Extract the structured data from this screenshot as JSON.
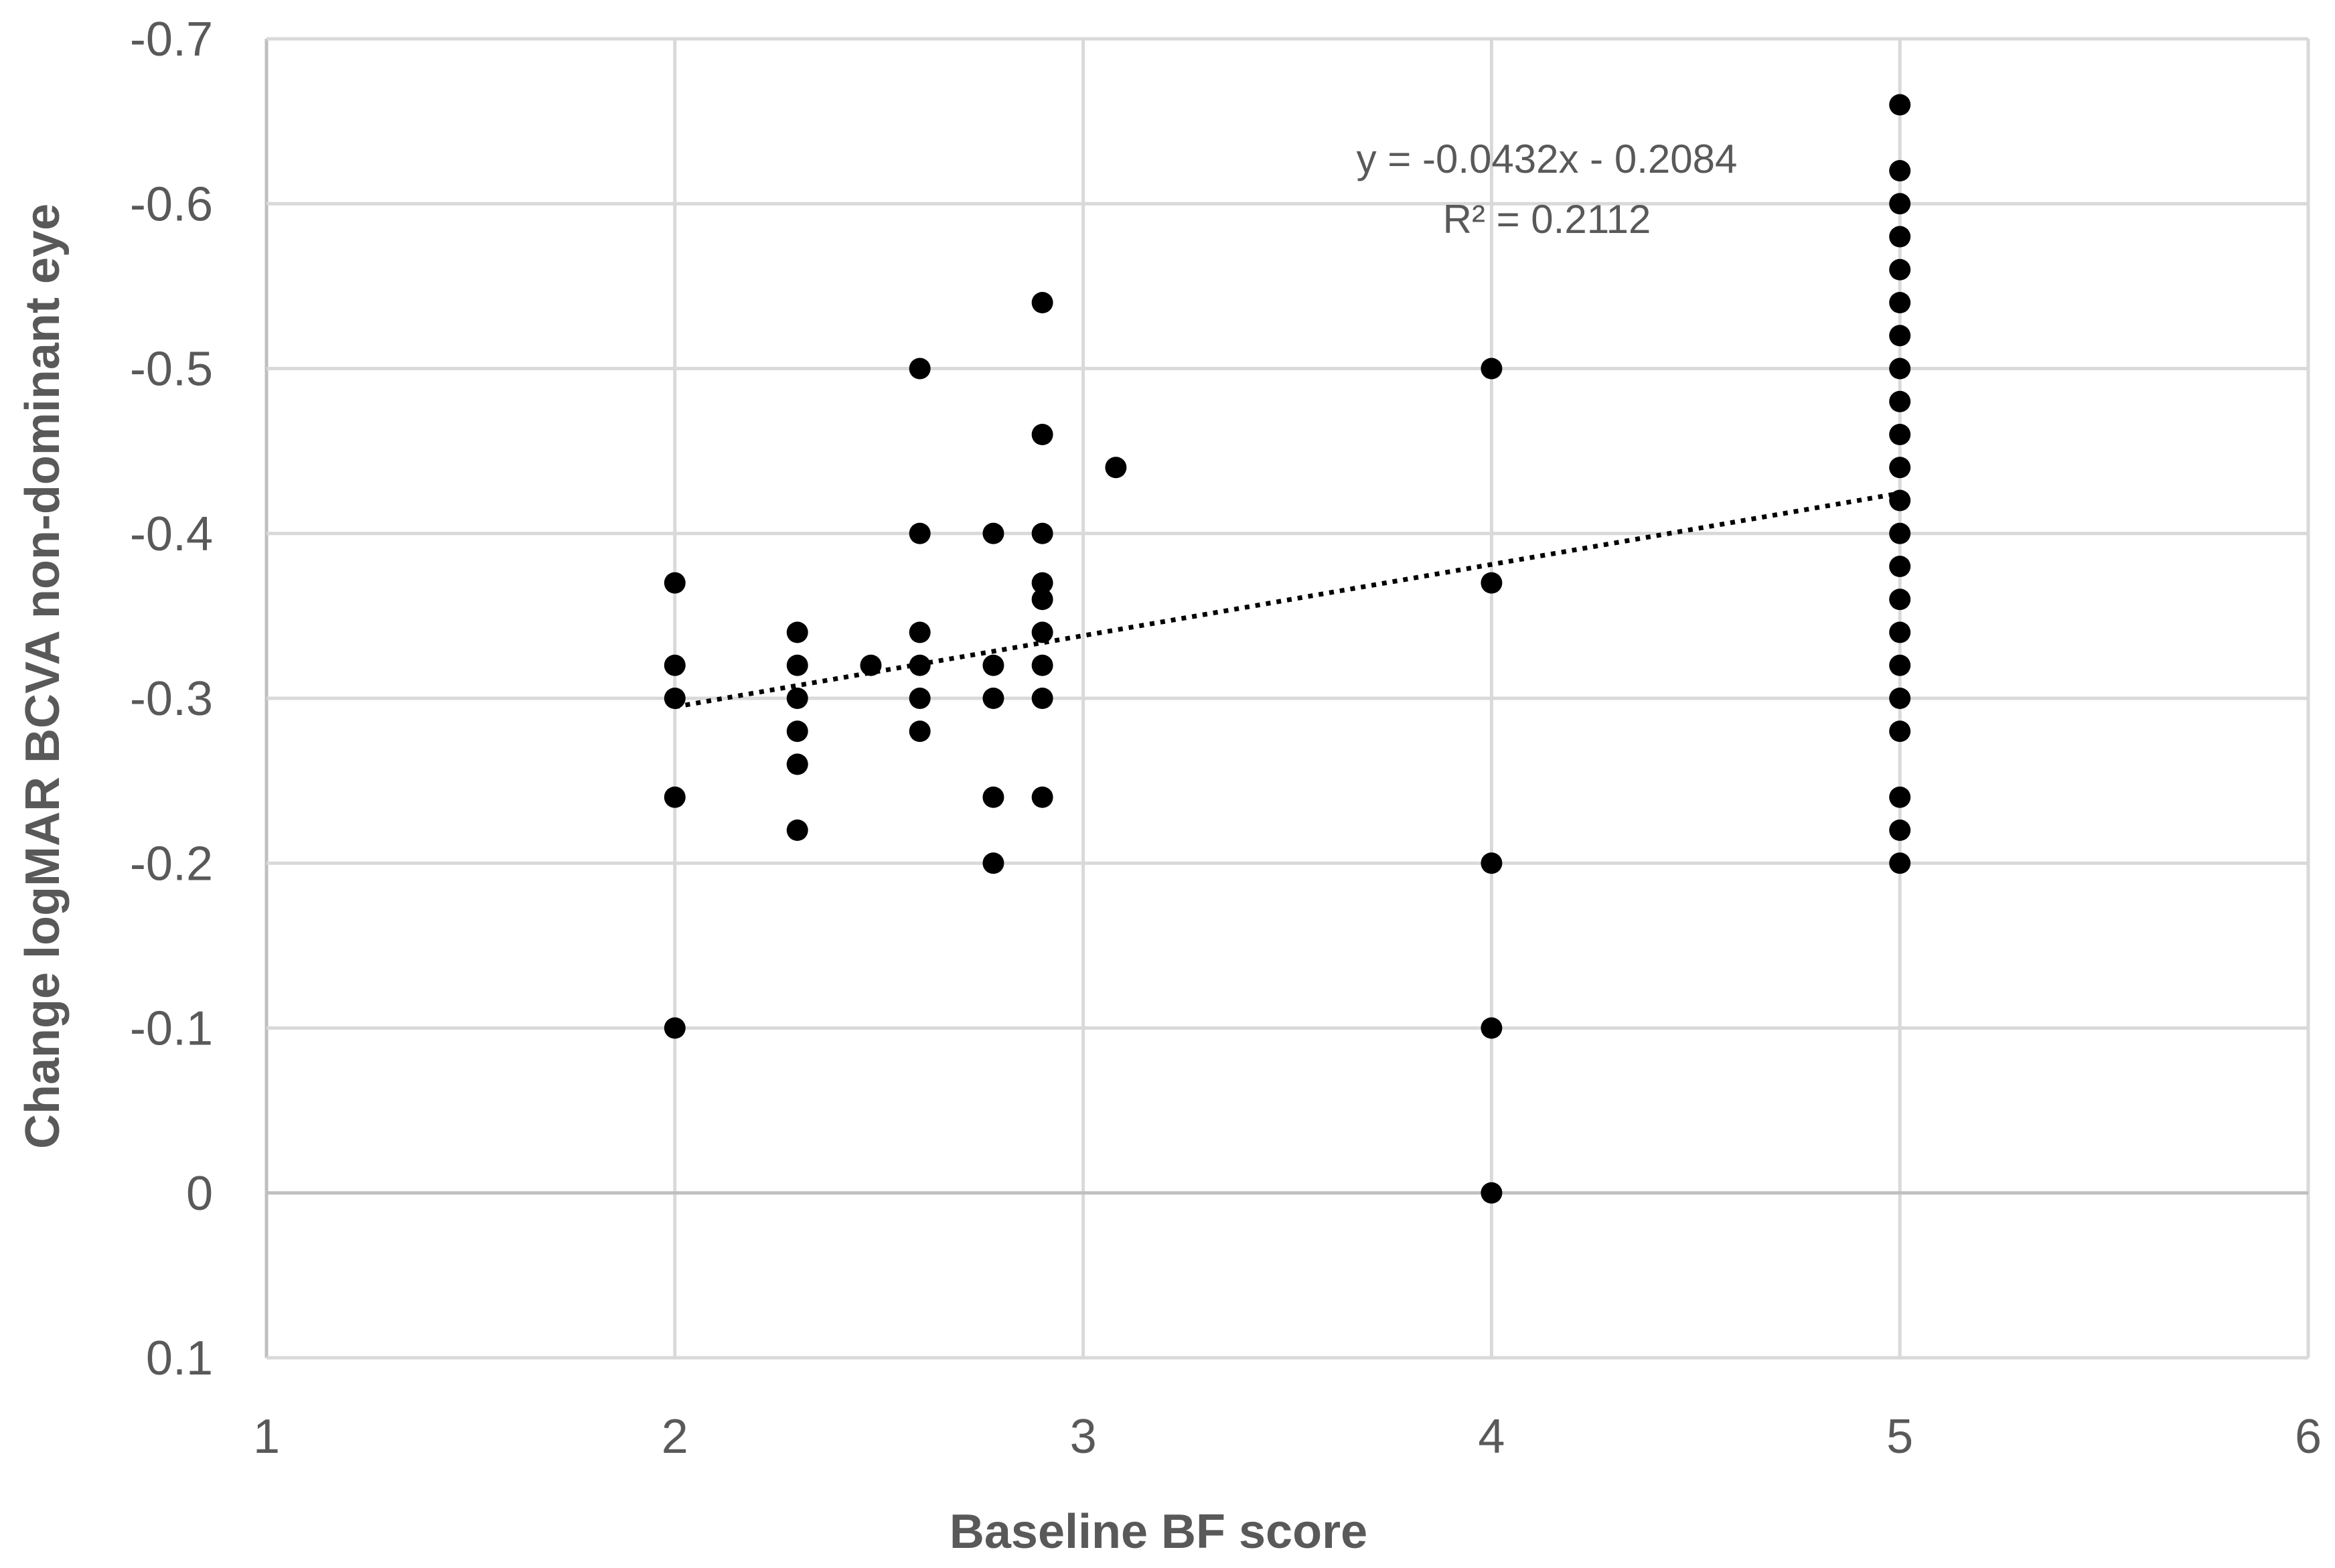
{
  "chart_data": {
    "type": "scatter",
    "title": "",
    "xlabel": "Baseline BF score",
    "ylabel": "Change logMAR BCVA non-dominant  eye",
    "xlim": [
      1,
      6
    ],
    "ylim": [
      -0.7,
      0.1
    ],
    "y_axis_inverted": true,
    "x_ticks": [
      1,
      2,
      3,
      4,
      5,
      6
    ],
    "y_ticks": [
      -0.7,
      -0.6,
      -0.5,
      -0.4,
      -0.3,
      -0.2,
      -0.1,
      0,
      0.1
    ],
    "x_tick_labels": [
      "1",
      "2",
      "3",
      "4",
      "5",
      "6"
    ],
    "y_tick_labels": [
      "-0.7",
      "-0.6",
      "-0.5",
      "-0.4",
      "-0.3",
      "-0.2",
      "-0.1",
      "0",
      "0.1"
    ],
    "grid": true,
    "legend": "none",
    "marker_color": "#000000",
    "series": [
      {
        "points": [
          [
            2,
            -0.37
          ],
          [
            2,
            -0.32
          ],
          [
            2,
            -0.3
          ],
          [
            2,
            -0.24
          ],
          [
            2,
            -0.1
          ],
          [
            2.3,
            -0.34
          ],
          [
            2.3,
            -0.32
          ],
          [
            2.3,
            -0.3
          ],
          [
            2.3,
            -0.28
          ],
          [
            2.3,
            -0.26
          ],
          [
            2.3,
            -0.22
          ],
          [
            2.48,
            -0.32
          ],
          [
            2.6,
            -0.5
          ],
          [
            2.6,
            -0.4
          ],
          [
            2.6,
            -0.34
          ],
          [
            2.6,
            -0.32
          ],
          [
            2.6,
            -0.3
          ],
          [
            2.6,
            -0.28
          ],
          [
            2.78,
            -0.4
          ],
          [
            2.78,
            -0.32
          ],
          [
            2.78,
            -0.3
          ],
          [
            2.78,
            -0.24
          ],
          [
            2.78,
            -0.2
          ],
          [
            2.9,
            -0.54
          ],
          [
            2.9,
            -0.46
          ],
          [
            2.9,
            -0.4
          ],
          [
            2.9,
            -0.37
          ],
          [
            2.9,
            -0.36
          ],
          [
            2.9,
            -0.34
          ],
          [
            2.9,
            -0.32
          ],
          [
            2.9,
            -0.3
          ],
          [
            2.9,
            -0.24
          ],
          [
            3.08,
            -0.44
          ],
          [
            4,
            -0.5
          ],
          [
            4,
            -0.37
          ],
          [
            4,
            -0.2
          ],
          [
            4,
            -0.1
          ],
          [
            4,
            0
          ],
          [
            5,
            -0.66
          ],
          [
            5,
            -0.62
          ],
          [
            5,
            -0.6
          ],
          [
            5,
            -0.58
          ],
          [
            5,
            -0.56
          ],
          [
            5,
            -0.54
          ],
          [
            5,
            -0.52
          ],
          [
            5,
            -0.5
          ],
          [
            5,
            -0.48
          ],
          [
            5,
            -0.46
          ],
          [
            5,
            -0.44
          ],
          [
            5,
            -0.42
          ],
          [
            5,
            -0.4
          ],
          [
            5,
            -0.38
          ],
          [
            5,
            -0.36
          ],
          [
            5,
            -0.34
          ],
          [
            5,
            -0.32
          ],
          [
            5,
            -0.3
          ],
          [
            5,
            -0.28
          ],
          [
            5,
            -0.24
          ],
          [
            5,
            -0.22
          ],
          [
            5,
            -0.2
          ]
        ]
      }
    ],
    "trendline": {
      "type": "linear",
      "style": "dotted",
      "color": "#000000",
      "slope": -0.0432,
      "intercept": -0.2084,
      "x_range": [
        2,
        5
      ],
      "equation_label": "y = -0.0432x - 0.2084",
      "r2_label": "R² = 0.2112"
    },
    "colors": {
      "grid": "#d9d9d9",
      "text": "#595959",
      "axis": "#bfbfbf"
    }
  }
}
